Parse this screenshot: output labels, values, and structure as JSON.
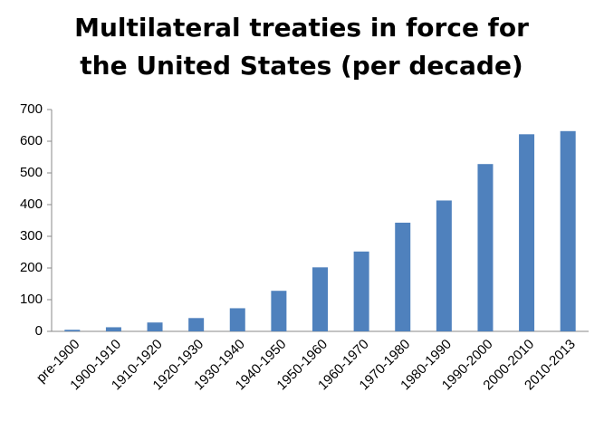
{
  "chart_data": {
    "type": "bar",
    "title": "Multilateral treaties in force for the United States (per decade)",
    "categories": [
      "pre-1900",
      "1900-1910",
      "1910-1920",
      "1920-1930",
      "1930-1940",
      "1940-1950",
      "1950-1960",
      "1960-1970",
      "1970-1980",
      "1980-1990",
      "1990-2000",
      "2000-2010",
      "2010-2013"
    ],
    "values": [
      5,
      13,
      28,
      42,
      73,
      128,
      202,
      252,
      343,
      413,
      528,
      622,
      632
    ],
    "color": "#4f81bd",
    "ylim": [
      0,
      700
    ],
    "yticks": [
      0,
      100,
      200,
      300,
      400,
      500,
      600,
      700
    ],
    "grid": false
  }
}
